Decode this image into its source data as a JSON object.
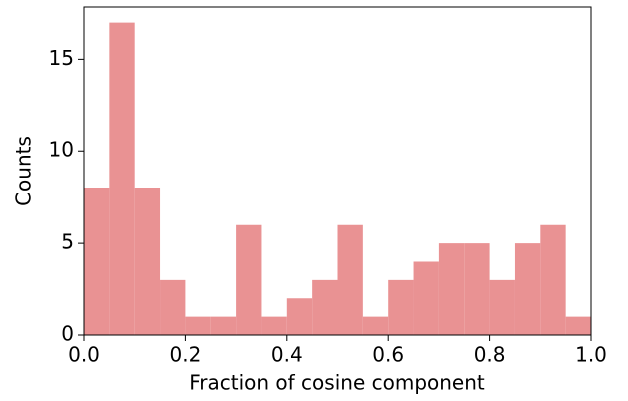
{
  "chart_data": {
    "type": "histogram",
    "xlabel": "Fraction of cosine component",
    "ylabel": "Counts",
    "bins": [
      0,
      0.05,
      0.1,
      0.15,
      0.2,
      0.25,
      0.3,
      0.35,
      0.4,
      0.45,
      0.5,
      0.55,
      0.6,
      0.65,
      0.7,
      0.75,
      0.8,
      0.85,
      0.9,
      0.95,
      1.0
    ],
    "values": [
      8,
      17,
      8,
      3,
      1,
      1,
      6,
      1,
      2,
      3,
      6,
      1,
      3,
      4,
      5,
      5,
      3,
      5,
      6,
      1
    ],
    "color": "#e99293",
    "xlim": [
      0,
      1
    ],
    "ylim": [
      0,
      17.85
    ],
    "xticks": [
      {
        "value": 0,
        "label": "0.0"
      },
      0.2,
      0.4,
      0.6,
      0.8,
      {
        "value": 1,
        "label": "1.0"
      }
    ],
    "yticks": [
      0,
      5,
      10,
      15
    ]
  }
}
